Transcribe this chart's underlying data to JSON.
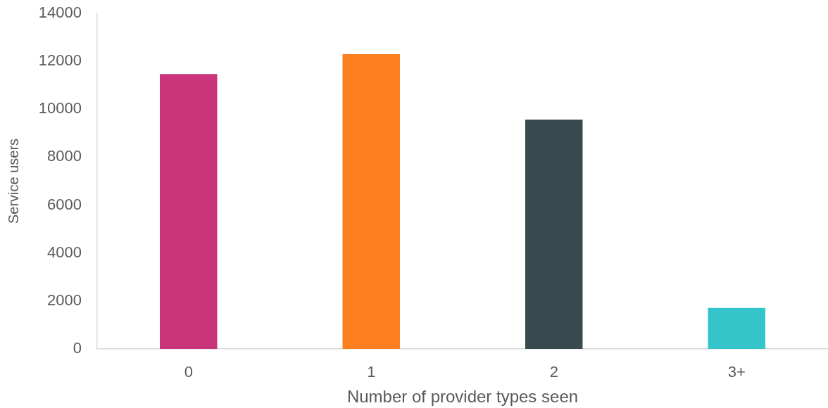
{
  "chart_data": {
    "type": "bar",
    "xlabel": "Number of provider types seen",
    "ylabel": "Service users",
    "categories": [
      "0",
      "1",
      "2",
      "3+"
    ],
    "values": [
      11470,
      12300,
      9570,
      1710
    ],
    "colors": [
      "#c9347b",
      "#fd7f20",
      "#374b4f",
      "#33c5c9"
    ],
    "ylim": [
      0,
      14000
    ],
    "yticks": [
      0,
      2000,
      4000,
      6000,
      8000,
      10000,
      12000,
      14000
    ]
  }
}
